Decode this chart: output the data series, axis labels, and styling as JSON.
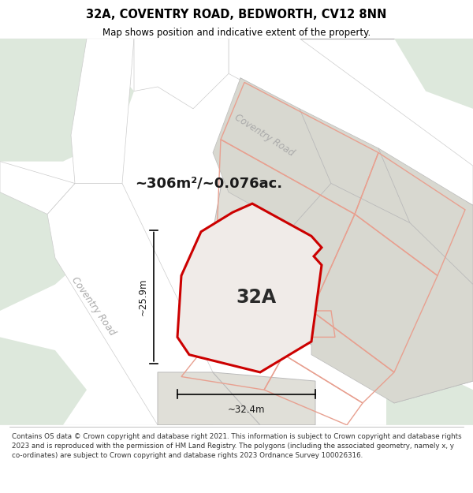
{
  "title": "32A, COVENTRY ROAD, BEDWORTH, CV12 8NN",
  "subtitle": "Map shows position and indicative extent of the property.",
  "footer": "Contains OS data © Crown copyright and database right 2021. This information is subject to Crown copyright and database rights 2023 and is reproduced with the permission of HM Land Registry. The polygons (including the associated geometry, namely x, y co-ordinates) are subject to Crown copyright and database rights 2023 Ordnance Survey 100026316.",
  "area_label": "~306m²/~0.076ac.",
  "property_label": "32A",
  "width_label": "~32.4m",
  "height_label": "~25.9m",
  "road_label_top": "Coventry Road",
  "road_label_left": "Coventry Road",
  "map_bg": "#eeede8",
  "road_color": "#ffffff",
  "road_border_color": "#cccccc",
  "plot_fill": "#e0dfd8",
  "plot_border": "#bbbbbb",
  "highlight_color": "#cc0000",
  "highlight_fill": "#f0ebe8",
  "light_green": "#dde8dc",
  "pink_line_color": "#e8a090"
}
